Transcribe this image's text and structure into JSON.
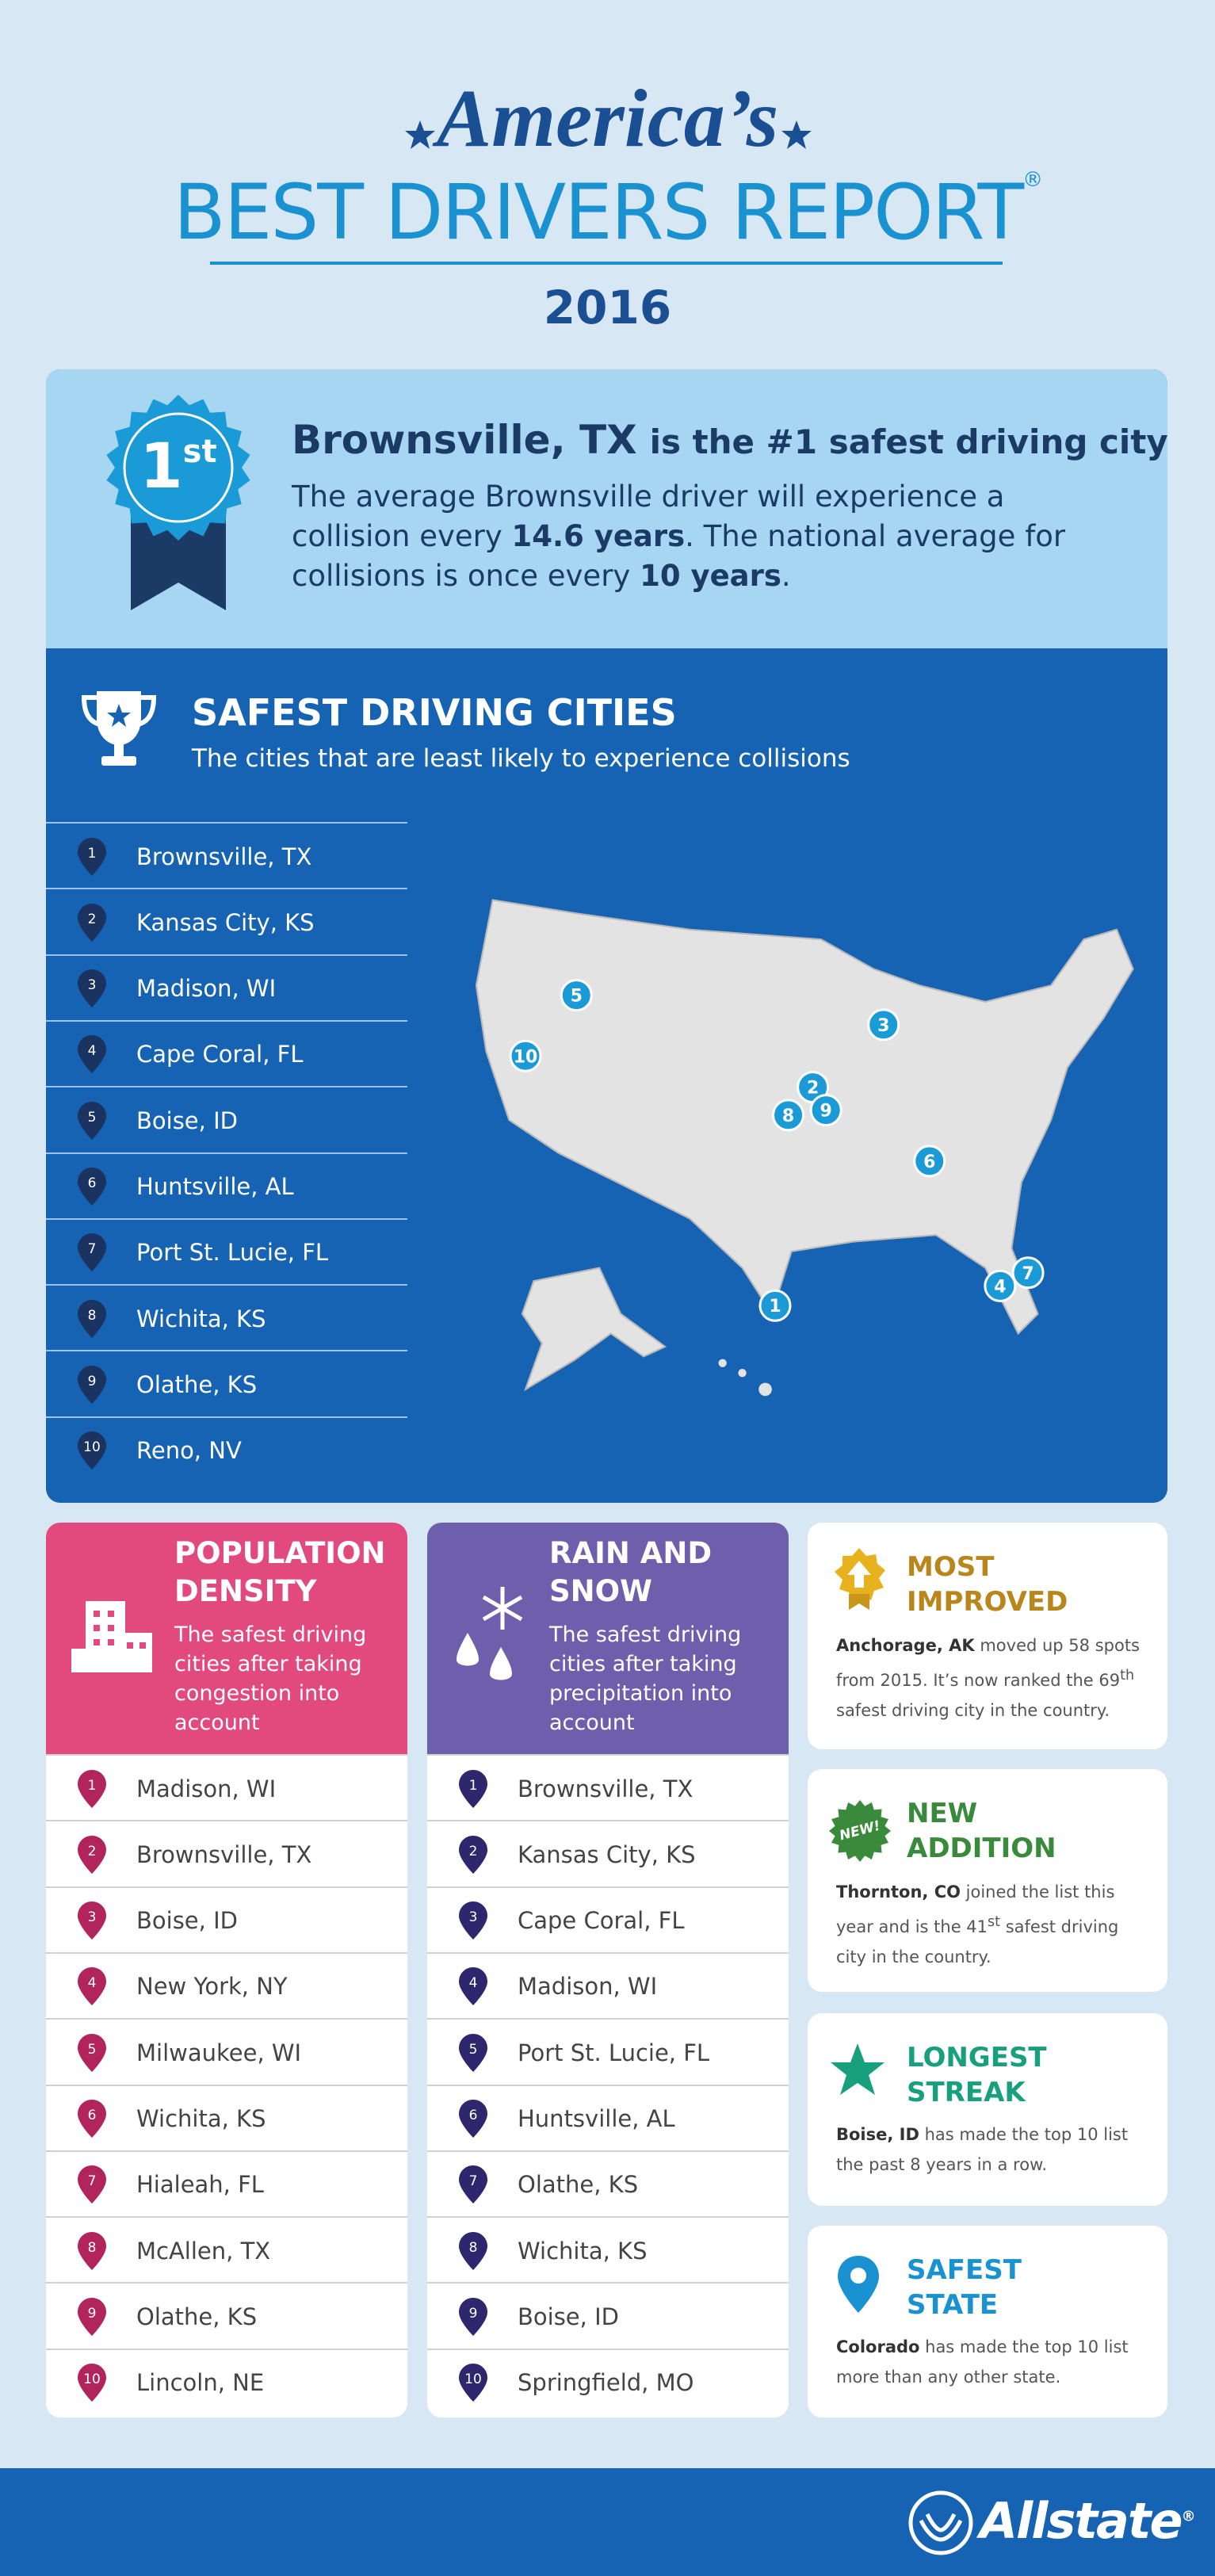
{
  "header": {
    "script_title": "America’s",
    "title": "BEST DRIVERS REPORT",
    "registered": "®",
    "year": "2016"
  },
  "ranks": [
    "1",
    "2",
    "3",
    "4",
    "5",
    "6",
    "7",
    "8",
    "9",
    "10"
  ],
  "winner": {
    "badge_rank": "1",
    "badge_suffix": "st",
    "city": "Brownsville, TX",
    "headline_rest": "is the #1 safest driving city",
    "text_1": "The average Brownsville driver will experience a collision every ",
    "years_city": "14.6 years",
    "text_2": ". The national average for collisions is once every ",
    "years_national": "10 years",
    "text_3": "."
  },
  "safest": {
    "title": "SAFEST DRIVING CITIES",
    "subtitle": "The cities that are least likely to experience collisions",
    "cities": [
      "Brownsville, TX",
      "Kansas City, KS",
      "Madison, WI",
      "Cape Coral, FL",
      "Boise, ID",
      "Huntsville, AL",
      "Port St. Lucie, FL",
      "Wichita, KS",
      "Olathe, KS",
      "Reno, NV"
    ],
    "map_markers": [
      "5",
      "10",
      "3",
      "2",
      "9",
      "8",
      "6",
      "1",
      "4",
      "7"
    ]
  },
  "population": {
    "title_1": "POPULATION",
    "title_2": "DENSITY",
    "subtitle": "The safest driving cities after taking congestion into account",
    "cities": [
      "Madison, WI",
      "Brownsville, TX",
      "Boise, ID",
      "New York, NY",
      "Milwaukee, WI",
      "Wichita, KS",
      "Hialeah, FL",
      "McAllen, TX",
      "Olathe, KS",
      "Lincoln, NE"
    ]
  },
  "rain": {
    "title_1": "RAIN AND",
    "title_2": "SNOW",
    "subtitle": "The safest driving cities after taking precipitation into account",
    "cities": [
      "Brownsville, TX",
      "Kansas City, KS",
      "Cape Coral, FL",
      "Madison, WI",
      "Port St. Lucie, FL",
      "Huntsville, AL",
      "Olathe, KS",
      "Wichita, KS",
      "Boise, ID",
      "Springfield, MO"
    ]
  },
  "most_improved": {
    "title_1": "MOST",
    "title_2": "IMPROVED",
    "city": "Anchorage, AK",
    "text_1": " moved up 58 spots from 2015. It’s now ranked the 69",
    "sup": "th",
    "text_2": " safest driving city in the country."
  },
  "new_addition": {
    "badge": "NEW!",
    "title_1": "NEW",
    "title_2": "ADDITION",
    "city": "Thornton, CO",
    "text_1": " joined the list this year and is the 41",
    "sup": "st",
    "text_2": " safest driving city in the country."
  },
  "longest_streak": {
    "title_1": "LONGEST",
    "title_2": "STREAK",
    "city": "Boise, ID",
    "text_1": " has made the top 10 list the past 8 years in a row."
  },
  "safest_state": {
    "title_1": "SAFEST",
    "title_2": "STATE",
    "city": "Colorado",
    "text_1": " has made the top 10 list more than any other state."
  },
  "footer": {
    "brand": "Allstate",
    "registered": "®"
  }
}
